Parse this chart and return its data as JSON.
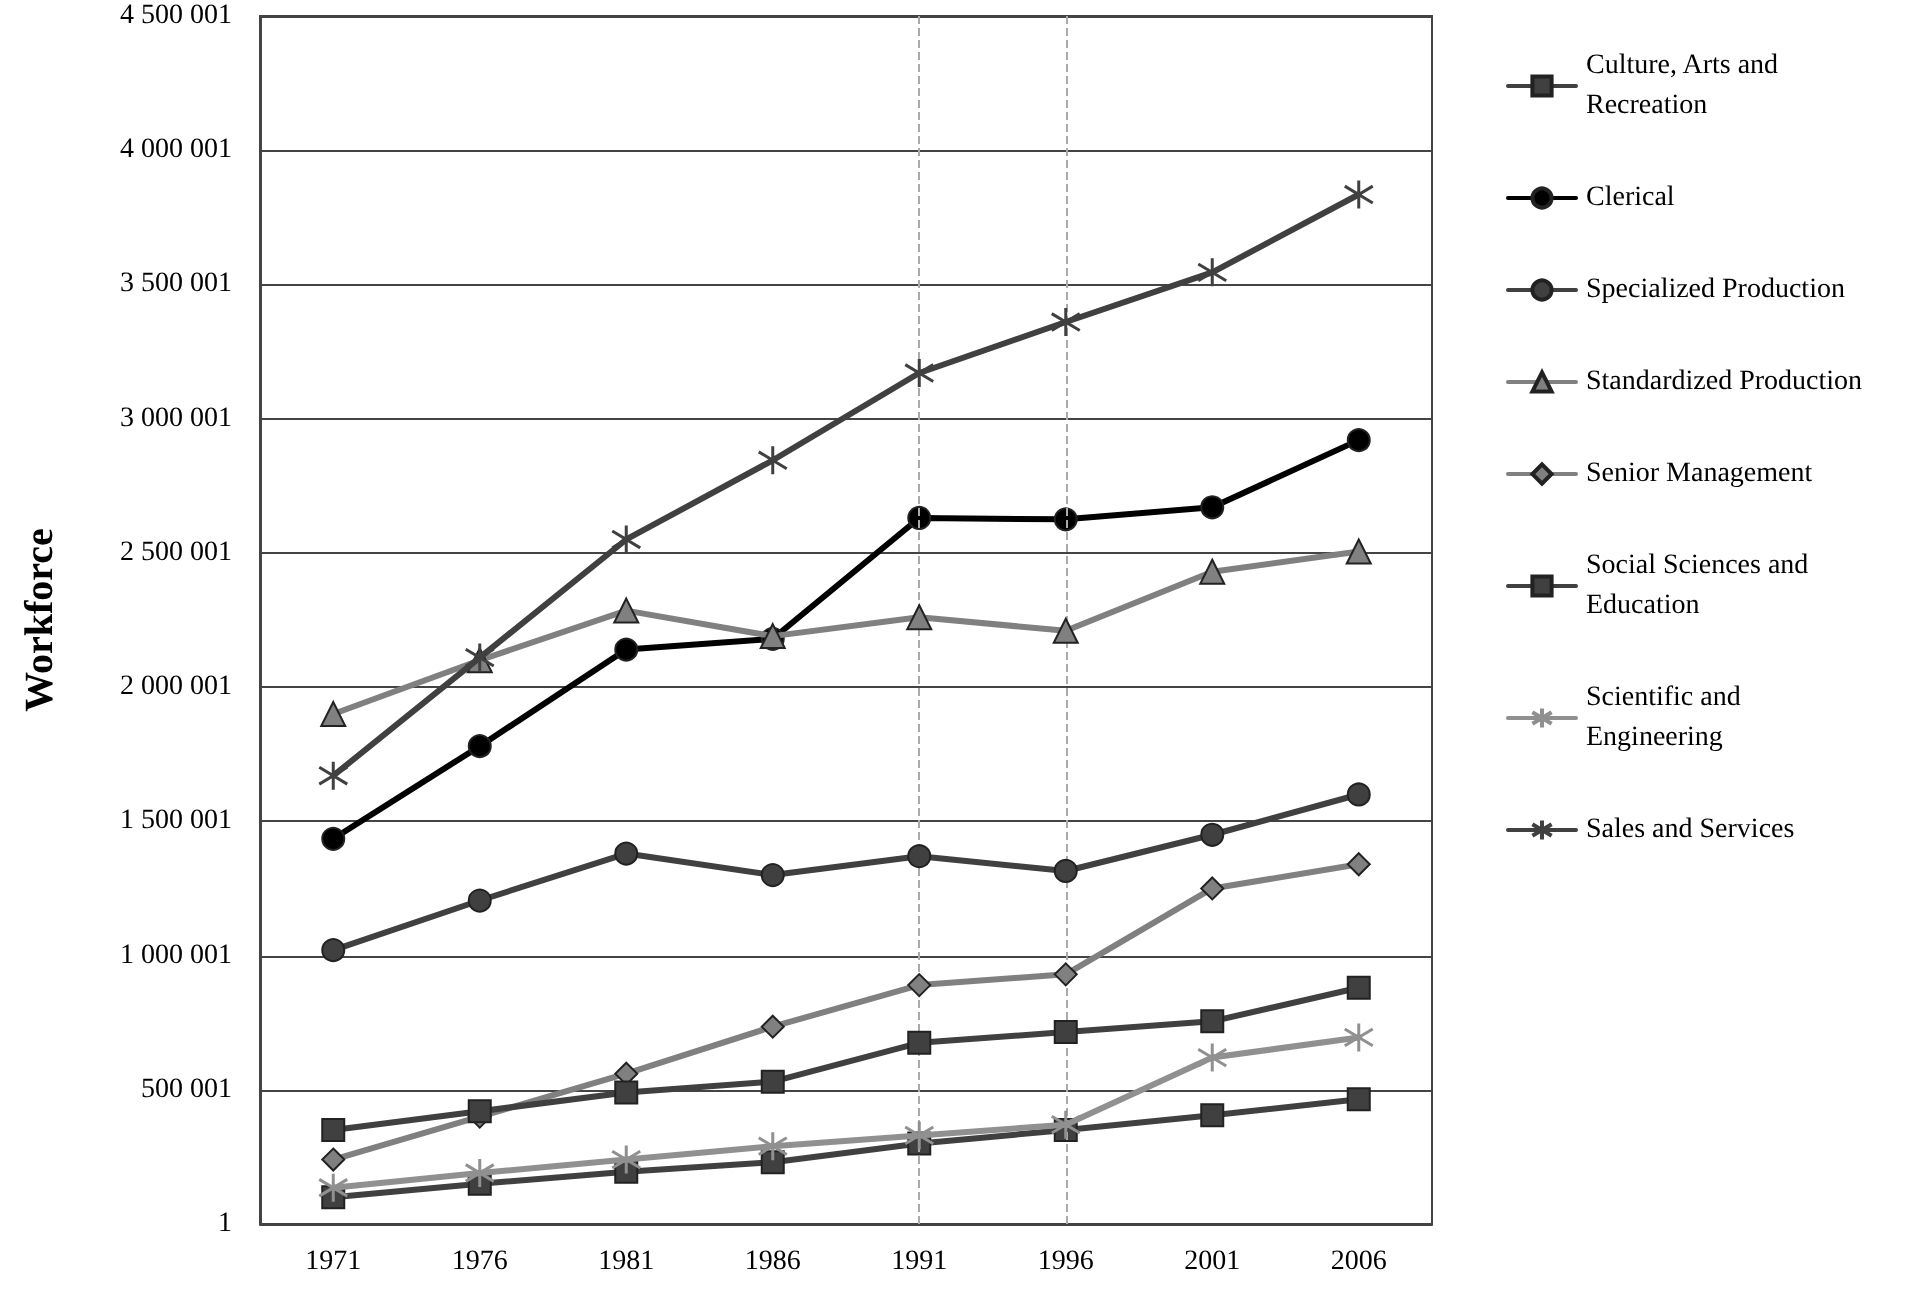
{
  "chart_data": {
    "type": "line",
    "ylabel": "Workforce",
    "categories": [
      "1971",
      "1976",
      "1981",
      "1986",
      "1991",
      "1996",
      "2001",
      "2006"
    ],
    "ylim": [
      1,
      4500001
    ],
    "yticks": [
      1,
      {
        "value": 500001,
        "label": "500 001"
      },
      {
        "value": 1000001,
        "label": "1 000 001"
      },
      {
        "value": 1500001,
        "label": "1 500 001"
      },
      {
        "value": 2000001,
        "label": "2 000 001"
      },
      {
        "value": 2500001,
        "label": "2 500 001"
      },
      {
        "value": 3000001,
        "label": "3 000 001"
      },
      {
        "value": 3500001,
        "label": "3 500 001"
      },
      {
        "value": 4000001,
        "label": "4 000 001"
      },
      {
        "value": 4500001,
        "label": "4 500 001"
      }
    ],
    "grid": "y",
    "legend": "right",
    "ref_lines": [
      {
        "axis": "x",
        "value": "1991",
        "color": "#aaaaaa",
        "line_style": "dashed"
      },
      {
        "axis": "x",
        "value": "1996",
        "color": "#aaaaaa",
        "line_style": "dashed"
      }
    ],
    "series": [
      {
        "name": "Culture, Arts and Recreation",
        "color": "#404040",
        "marker": "square",
        "values": [
          100000,
          150000,
          195000,
          230000,
          300000,
          350000,
          405000,
          465000
        ]
      },
      {
        "name": "Clerical",
        "color": "#000000",
        "marker": "circle",
        "values": [
          1435000,
          1780000,
          2140000,
          2180000,
          2630000,
          2625000,
          2670000,
          2920000
        ]
      },
      {
        "name": "Specialized Production",
        "color": "#404040",
        "marker": "circle",
        "values": [
          1020000,
          1205000,
          1380000,
          1300000,
          1370000,
          1315000,
          1450000,
          1600000
        ]
      },
      {
        "name": "Standardized Production",
        "color": "#808080",
        "marker": "triangle",
        "values": [
          1900000,
          2100000,
          2285000,
          2190000,
          2260000,
          2210000,
          2430000,
          2505000
        ]
      },
      {
        "name": "Senior Management",
        "color": "#808080",
        "marker": "diamond",
        "values": [
          240000,
          400000,
          560000,
          735000,
          890000,
          930000,
          1250000,
          1340000
        ]
      },
      {
        "name": "Social Sciences and Education",
        "color": "#404040",
        "marker": "square",
        "values": [
          350000,
          420000,
          490000,
          530000,
          675000,
          715000,
          755000,
          880000
        ]
      },
      {
        "name": "Scientific and Engineering",
        "color": "#909090",
        "marker": "cross",
        "values": [
          135000,
          190000,
          240000,
          290000,
          330000,
          370000,
          620000,
          695000
        ]
      },
      {
        "name": "Sales and Services",
        "color": "#404040",
        "marker": "cross",
        "values": [
          1670000,
          2110000,
          2550000,
          2845000,
          3170000,
          3360000,
          3545000,
          3835000
        ]
      }
    ]
  }
}
